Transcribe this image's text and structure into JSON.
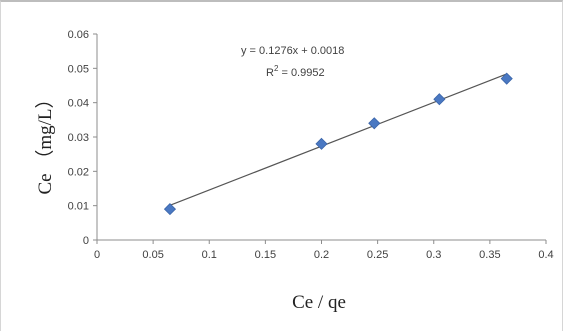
{
  "chart_data": {
    "type": "scatter",
    "xlabel": "Ce / qe",
    "ylabel": "Ce （mg/L）",
    "xlim": [
      0,
      0.4
    ],
    "ylim": [
      0,
      0.06
    ],
    "x_ticks": [
      "0",
      "0.05",
      "0.1",
      "0.15",
      "0.2",
      "0.25",
      "0.3",
      "0.35",
      "0.4"
    ],
    "y_ticks": [
      "0",
      "0.01",
      "0.02",
      "0.03",
      "0.04",
      "0.05",
      "0.06"
    ],
    "grid": false,
    "series": [
      {
        "x": [
          0.065,
          0.2,
          0.247,
          0.305,
          0.365
        ],
        "y": [
          0.009,
          0.028,
          0.034,
          0.041,
          0.047
        ],
        "marker": "diamond",
        "color": "#4a78c2"
      }
    ],
    "trendline": {
      "slope": 0.1276,
      "intercept": 0.0018,
      "x_range": [
        0.065,
        0.365
      ],
      "color": "#555555"
    },
    "annotations": {
      "equation": "y = 0.1276x + 0.0018",
      "r_squared_label": "R",
      "r_squared_sup": "2",
      "r_squared_value": " = 0.9952"
    }
  }
}
